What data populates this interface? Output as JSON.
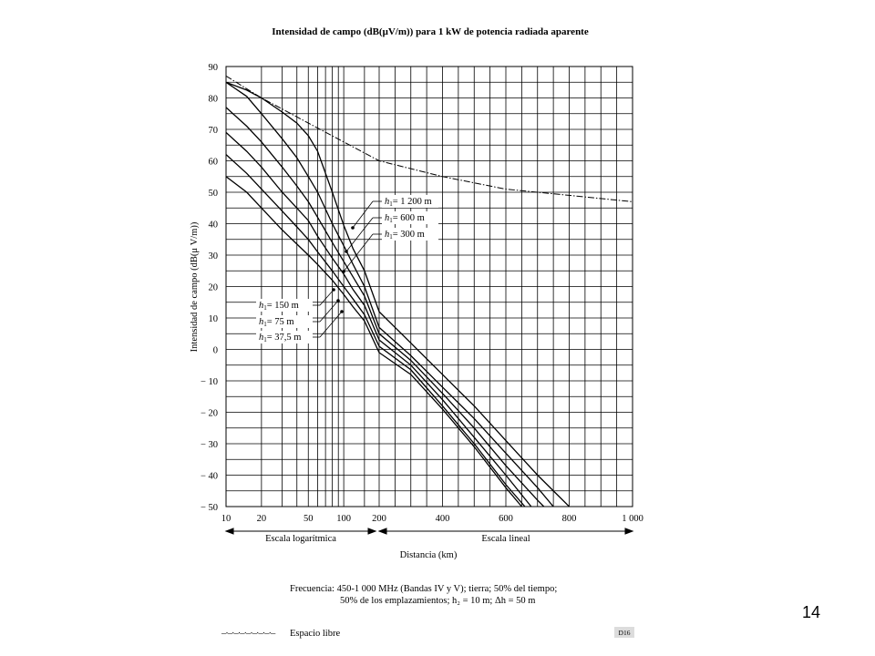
{
  "chart_data": {
    "type": "line",
    "title": "Intensidad de campo (dB(μV/m)) para 1 kW de potencia radiada aparente",
    "xlabel": "Distancia (km)",
    "ylabel": "Intensidad de campo (dB(μ V/m))",
    "ylim": [
      -50,
      90
    ],
    "yticks": [
      90,
      80,
      70,
      60,
      50,
      40,
      30,
      20,
      10,
      0,
      -10,
      -20,
      -30,
      -40,
      -50
    ],
    "ytick_labels": [
      "90",
      "80",
      "70",
      "60",
      "50",
      "40",
      "30",
      "20",
      "10",
      "0",
      "− 10",
      "− 20",
      "− 30",
      "− 40",
      "− 50"
    ],
    "x_scale": "log 10–200 km, linear 200–1000 km",
    "xticks": [
      10,
      20,
      50,
      100,
      200,
      400,
      600,
      800,
      1000
    ],
    "xtick_labels": [
      "10",
      "20",
      "50",
      "100",
      "200",
      "400",
      "600",
      "800",
      "1 000"
    ],
    "grid": true,
    "scale_labels": {
      "log": "Escala logarítmica",
      "linear": "Escala lineal"
    },
    "series": [
      {
        "name": "h₁ = 1 200 m",
        "label": {
          "h": "h",
          "sub": "1",
          "value": "= 1 200 m"
        },
        "x": [
          10,
          15,
          20,
          30,
          40,
          50,
          60,
          80,
          100,
          120,
          150,
          200,
          300,
          400,
          500,
          600,
          700,
          800
        ],
        "y": [
          85,
          82.5,
          80,
          75.5,
          72,
          68,
          63,
          50,
          39.5,
          32,
          25,
          12,
          2,
          -8,
          -18,
          -29,
          -40,
          -50
        ]
      },
      {
        "name": "h₁ = 600 m",
        "label": {
          "h": "h",
          "sub": "1",
          "value": "=    600 m"
        },
        "x": [
          10,
          15,
          20,
          30,
          40,
          50,
          60,
          80,
          100,
          120,
          150,
          200,
          300,
          400,
          500,
          600,
          700,
          750
        ],
        "y": [
          85,
          80.5,
          75,
          67,
          61,
          55,
          50,
          40,
          33,
          27,
          20,
          7,
          -2,
          -12,
          -22,
          -33,
          -44,
          -50
        ]
      },
      {
        "name": "h₁ = 300 m",
        "label": {
          "h": "h",
          "sub": "1",
          "value": "=    300 m"
        },
        "x": [
          10,
          15,
          20,
          30,
          40,
          50,
          60,
          80,
          100,
          120,
          150,
          200,
          300,
          400,
          500,
          600,
          700,
          720
        ],
        "y": [
          77,
          71,
          66,
          58,
          52,
          47,
          42,
          34,
          28,
          23,
          17,
          5,
          -3.5,
          -14,
          -25,
          -37,
          -48,
          -50
        ]
      },
      {
        "name": "h₁ = 150 m",
        "label": {
          "h": "h",
          "sub": "1",
          "value": "= 150   m"
        },
        "x": [
          10,
          15,
          20,
          30,
          40,
          50,
          60,
          80,
          100,
          120,
          150,
          200,
          300,
          400,
          500,
          600,
          680
        ],
        "y": [
          69,
          63,
          58,
          50,
          45,
          41,
          36,
          29,
          24,
          19,
          14,
          3,
          -5,
          -16,
          -28,
          -40,
          -50
        ]
      },
      {
        "name": "h₁ = 75 m",
        "label": {
          "h": "h",
          "sub": "1",
          "value": "=   75   m"
        },
        "x": [
          10,
          15,
          20,
          30,
          40,
          50,
          60,
          80,
          100,
          120,
          150,
          200,
          300,
          400,
          500,
          600,
          660
        ],
        "y": [
          62,
          56,
          51,
          44,
          39,
          35,
          31,
          25,
          20,
          16,
          11,
          1,
          -6.5,
          -18,
          -30,
          -43,
          -50
        ]
      },
      {
        "name": "h₁ = 37,5 m",
        "label": {
          "h": "h",
          "sub": "1",
          "value": "=   37,5 m"
        },
        "x": [
          10,
          15,
          20,
          30,
          40,
          50,
          60,
          80,
          100,
          120,
          150,
          200,
          300,
          400,
          500,
          600,
          650
        ],
        "y": [
          55,
          50,
          45,
          38,
          33.5,
          30,
          27,
          22,
          17.5,
          13.5,
          9,
          -1,
          -8,
          -19,
          -31,
          -44,
          -50
        ]
      },
      {
        "name": "Espacio libre",
        "style": "dash-dot",
        "x": [
          10,
          20,
          30,
          50,
          100,
          200,
          400,
          600,
          800,
          1000
        ],
        "y": [
          87,
          80,
          76.5,
          72,
          66,
          60,
          55,
          51,
          49,
          47
        ]
      }
    ],
    "notes": {
      "freq_line1": "Frecuencia:  450-1 000 MHz (Bandas IV y V); tierra; 50% del tiempo;",
      "freq_line2": "50% de los emplazamientos;  h₂ = 10 m;  Δh = 50 m"
    },
    "legend": {
      "symbol": "–·–·–·–·–·–·–·–·–",
      "label": "Espacio libre"
    },
    "figure_code": "D16"
  },
  "slide_number": "14"
}
